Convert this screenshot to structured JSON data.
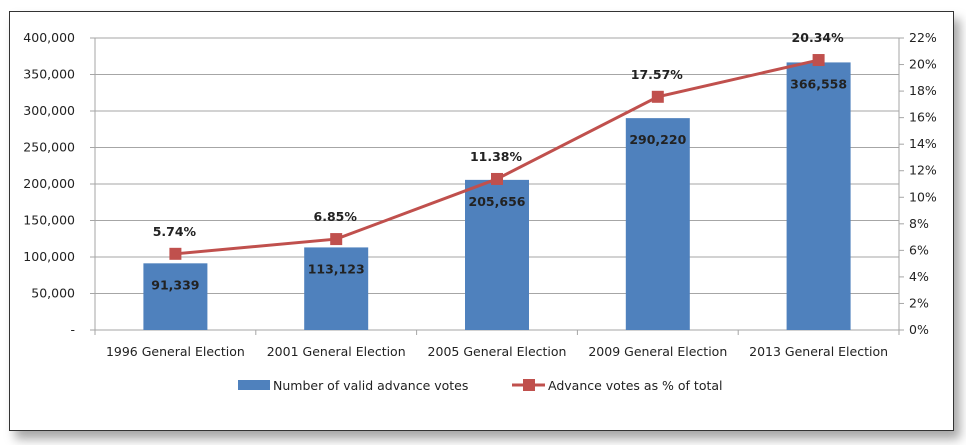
{
  "chart_data": {
    "type": "bar+line",
    "categories": [
      "1996 General Election",
      "2001 General Election",
      "2005 General Election",
      "2009 General Election",
      "2013 General Election"
    ],
    "series": [
      {
        "name": "Number of valid advance votes",
        "type": "bar",
        "axis": "left",
        "color": "#4F81BD",
        "values": [
          91339,
          113123,
          205656,
          290220,
          366558
        ],
        "labels": [
          "91,339",
          "113,123",
          "205,656",
          "290,220",
          "366,558"
        ]
      },
      {
        "name": "Advance votes as % of total",
        "type": "line",
        "axis": "right",
        "color": "#C0504D",
        "marker": "square",
        "values": [
          5.74,
          6.85,
          11.38,
          17.57,
          20.34
        ],
        "labels": [
          "5.74%",
          "6.85%",
          "11.38%",
          "17.57%",
          "20.34%"
        ]
      }
    ],
    "left_axis": {
      "ylim": [
        0,
        400000
      ],
      "ticks": [
        "-",
        "50,000",
        "100,000",
        "150,000",
        "200,000",
        "250,000",
        "300,000",
        "350,000",
        "400,000"
      ]
    },
    "right_axis": {
      "ylim": [
        0,
        22
      ],
      "ticks": [
        "0%",
        "2%",
        "4%",
        "6%",
        "8%",
        "10%",
        "12%",
        "14%",
        "16%",
        "18%",
        "20%",
        "22%"
      ]
    },
    "grid": true,
    "legend": "bottom"
  }
}
